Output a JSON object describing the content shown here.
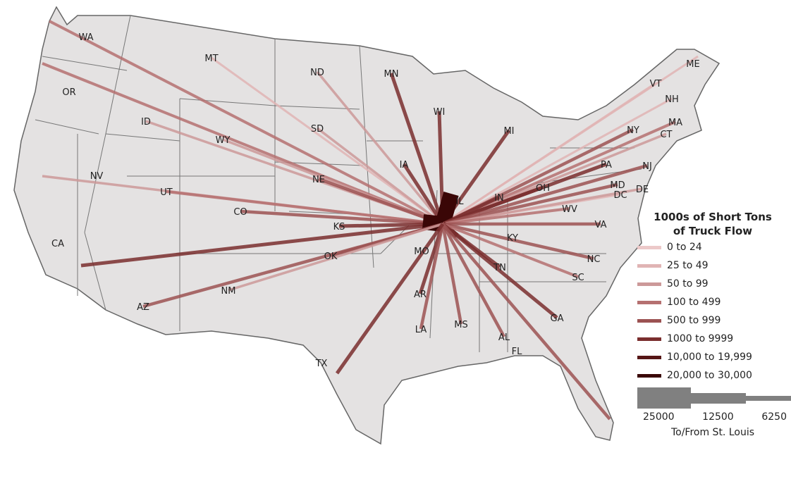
{
  "legend": {
    "title_line1": "1000s of Short Tons",
    "title_line2": "of Truck Flow",
    "classes": [
      {
        "label": "0 to 24",
        "color": "#ecc9c9"
      },
      {
        "label": "25 to 49",
        "color": "#e0b4b4"
      },
      {
        "label": "50 to 99",
        "color": "#cc9999"
      },
      {
        "label": "100 to 499",
        "color": "#b57070"
      },
      {
        "label": "500 to 999",
        "color": "#9c5252"
      },
      {
        "label": "1000 to 9999",
        "color": "#7a2e2e"
      },
      {
        "label": "10,000 to 19,999",
        "color": "#561616"
      },
      {
        "label": "20,000 to 30,000",
        "color": "#3a0606"
      }
    ],
    "scale_values": [
      "25000",
      "12500",
      "6250"
    ],
    "scale_caption": "To/From St. Louis"
  },
  "origin": "St. Louis",
  "states": [
    "WA",
    "MT",
    "ND",
    "MN",
    "WI",
    "MI",
    "ME",
    "VT",
    "NH",
    "MA",
    "NY",
    "CT",
    "OR",
    "ID",
    "WY",
    "SD",
    "IA",
    "NE",
    "NV",
    "UT",
    "CO",
    "KS",
    "IL",
    "IN",
    "OH",
    "PA",
    "NJ",
    "MD",
    "DC",
    "DE",
    "WV",
    "VA",
    "KY",
    "CA",
    "OK",
    "MO",
    "NC",
    "TN",
    "SC",
    "AR",
    "AZ",
    "NM",
    "GA",
    "LA",
    "MS",
    "AL",
    "FL",
    "TX"
  ],
  "flows": [
    {
      "state": "WA",
      "class": 3
    },
    {
      "state": "MT",
      "class": 1
    },
    {
      "state": "ND",
      "class": 2
    },
    {
      "state": "MN",
      "class": 5
    },
    {
      "state": "WI",
      "class": 5
    },
    {
      "state": "MI",
      "class": 5
    },
    {
      "state": "ME",
      "class": 1
    },
    {
      "state": "VT",
      "class": 1
    },
    {
      "state": "NH",
      "class": 1
    },
    {
      "state": "MA",
      "class": 3
    },
    {
      "state": "NY",
      "class": 4
    },
    {
      "state": "CT",
      "class": 2
    },
    {
      "state": "OR",
      "class": 3
    },
    {
      "state": "ID",
      "class": 2
    },
    {
      "state": "WY",
      "class": 2
    },
    {
      "state": "SD",
      "class": 2
    },
    {
      "state": "IA",
      "class": 5
    },
    {
      "state": "NE",
      "class": 4
    },
    {
      "state": "NV",
      "class": 2
    },
    {
      "state": "UT",
      "class": 3
    },
    {
      "state": "CO",
      "class": 4
    },
    {
      "state": "KS",
      "class": 5
    },
    {
      "state": "IL",
      "class": 7
    },
    {
      "state": "IN",
      "class": 5
    },
    {
      "state": "OH",
      "class": 5
    },
    {
      "state": "PA",
      "class": 5
    },
    {
      "state": "NJ",
      "class": 4
    },
    {
      "state": "MD",
      "class": 4
    },
    {
      "state": "DC",
      "class": 1
    },
    {
      "state": "DE",
      "class": 2
    },
    {
      "state": "WV",
      "class": 3
    },
    {
      "state": "VA",
      "class": 4
    },
    {
      "state": "KY",
      "class": 6
    },
    {
      "state": "CA",
      "class": 5
    },
    {
      "state": "OK",
      "class": 4
    },
    {
      "state": "MO",
      "class": 7
    },
    {
      "state": "NC",
      "class": 4
    },
    {
      "state": "TN",
      "class": 5
    },
    {
      "state": "SC",
      "class": 3
    },
    {
      "state": "AR",
      "class": 5
    },
    {
      "state": "AZ",
      "class": 4
    },
    {
      "state": "NM",
      "class": 2
    },
    {
      "state": "GA",
      "class": 5
    },
    {
      "state": "LA",
      "class": 4
    },
    {
      "state": "MS",
      "class": 4
    },
    {
      "state": "AL",
      "class": 4
    },
    {
      "state": "FL",
      "class": 4
    },
    {
      "state": "TX",
      "class": 5
    }
  ],
  "colors": {
    "land": "#e4e2e2",
    "border": "#555555",
    "water": "#ffffff"
  }
}
